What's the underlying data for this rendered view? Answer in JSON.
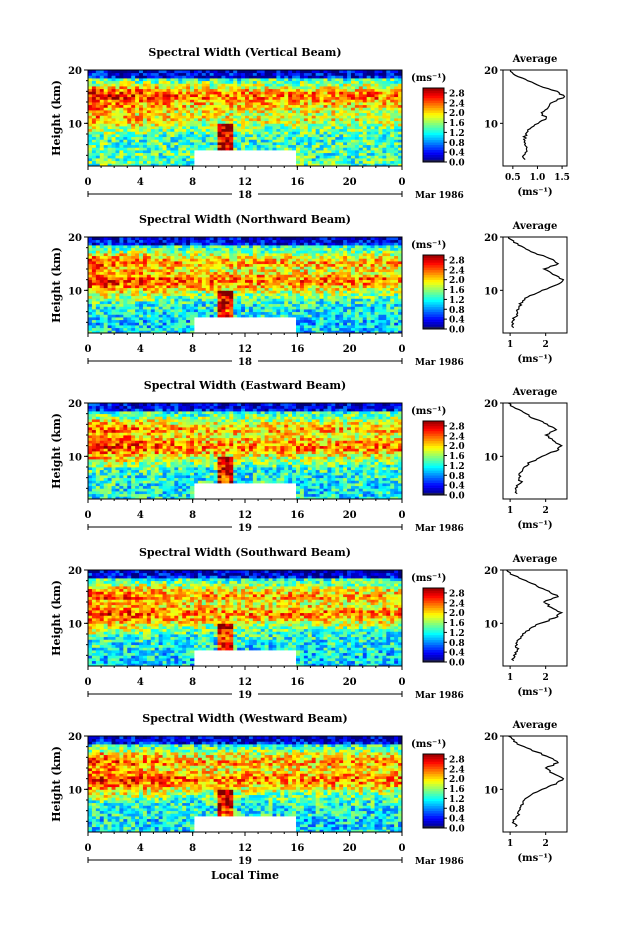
{
  "figure": {
    "x_label": "Local Time",
    "date_label": "Mar 1986"
  },
  "chart_data": [
    {
      "type": "heatmap",
      "title": "Spectral Width (Vertical Beam)",
      "ylabel": "Height (km)",
      "x_ticks": [
        "0",
        "4",
        "8",
        "12",
        "16",
        "20",
        "0"
      ],
      "day_label": "18",
      "xlim": [
        0,
        24
      ],
      "ylim": [
        2,
        20
      ],
      "y_ticks": [
        "20",
        "10"
      ],
      "colorbar": {
        "unit": "(ms⁻¹)",
        "ticks": [
          "2.8",
          "2.4",
          "2.0",
          "1.6",
          "1.2",
          "0.8",
          "0.4",
          "0.0"
        ],
        "range": [
          0,
          3.0
        ]
      },
      "data_gap": {
        "x": [
          8,
          16
        ],
        "y": [
          2,
          5.2
        ]
      },
      "average_profile": {
        "title": "Average",
        "xlabel": "(ms⁻¹)",
        "x_ticks": [
          "0.5",
          "1.0",
          "1.5"
        ],
        "xlim": [
          0.3,
          1.6
        ],
        "height": [
          3.2,
          4,
          5,
          6,
          7,
          8,
          9,
          10,
          11,
          12,
          13,
          14,
          15,
          16,
          17,
          18,
          19,
          20
        ],
        "values": [
          0.75,
          0.72,
          0.78,
          0.74,
          0.72,
          0.76,
          0.85,
          1.02,
          1.18,
          1.08,
          1.22,
          1.32,
          1.55,
          1.4,
          1.05,
          0.8,
          0.55,
          0.45
        ]
      }
    },
    {
      "type": "heatmap",
      "title": "Spectral Width (Northward Beam)",
      "ylabel": "Height (km)",
      "x_ticks": [
        "0",
        "4",
        "8",
        "12",
        "16",
        "20",
        "0"
      ],
      "day_label": "18",
      "xlim": [
        0,
        24
      ],
      "ylim": [
        2,
        20
      ],
      "y_ticks": [
        "20",
        "10"
      ],
      "colorbar": {
        "unit": "(ms⁻¹)",
        "ticks": [
          "2.8",
          "2.4",
          "2.0",
          "1.6",
          "1.2",
          "0.8",
          "0.4",
          "0.0"
        ],
        "range": [
          0,
          3.0
        ]
      },
      "data_gap": {
        "x": [
          8,
          16
        ],
        "y": [
          2,
          5.2
        ]
      },
      "average_profile": {
        "title": "Average",
        "xlabel": "(ms⁻¹)",
        "x_ticks": [
          "1",
          "2"
        ],
        "xlim": [
          0.8,
          2.6
        ],
        "height": [
          3,
          4,
          5,
          6,
          7,
          8,
          9,
          10,
          11,
          12,
          13,
          14,
          15,
          16,
          17,
          18,
          19,
          20
        ],
        "values": [
          1.1,
          1.05,
          1.15,
          1.2,
          1.25,
          1.35,
          1.55,
          1.9,
          2.3,
          2.5,
          2.2,
          1.95,
          2.35,
          2.1,
          1.7,
          1.4,
          1.1,
          0.95
        ]
      }
    },
    {
      "type": "heatmap",
      "title": "Spectral Width (Eastward Beam)",
      "ylabel": "Height (km)",
      "x_ticks": [
        "0",
        "4",
        "8",
        "12",
        "16",
        "20",
        "0"
      ],
      "day_label": "19",
      "xlim": [
        0,
        24
      ],
      "ylim": [
        2,
        20
      ],
      "y_ticks": [
        "20",
        "10"
      ],
      "colorbar": {
        "unit": "(ms⁻¹)",
        "ticks": [
          "2.8",
          "2.4",
          "2.0",
          "1.6",
          "1.2",
          "0.8",
          "0.4",
          "0.0"
        ],
        "range": [
          0,
          3.0
        ]
      },
      "data_gap": {
        "x": [
          8,
          16
        ],
        "y": [
          2,
          5.2
        ]
      },
      "average_profile": {
        "title": "Average",
        "xlabel": "(ms⁻¹)",
        "x_ticks": [
          "1",
          "2"
        ],
        "xlim": [
          0.8,
          2.6
        ],
        "height": [
          3,
          4,
          5,
          6,
          7,
          8,
          9,
          10,
          11,
          12,
          13,
          14,
          15,
          16,
          17,
          18,
          19,
          20
        ],
        "values": [
          1.2,
          1.15,
          1.3,
          1.25,
          1.3,
          1.4,
          1.6,
          1.9,
          2.3,
          2.45,
          2.2,
          2.0,
          2.3,
          2.05,
          1.7,
          1.45,
          1.15,
          0.95
        ]
      }
    },
    {
      "type": "heatmap",
      "title": "Spectral Width (Southward Beam)",
      "ylabel": "Height (km)",
      "x_ticks": [
        "0",
        "4",
        "8",
        "12",
        "16",
        "20",
        "0"
      ],
      "day_label": "19",
      "xlim": [
        0,
        24
      ],
      "ylim": [
        2,
        20
      ],
      "y_ticks": [
        "20",
        "10"
      ],
      "colorbar": {
        "unit": "(ms⁻¹)",
        "ticks": [
          "2.8",
          "2.4",
          "2.0",
          "1.6",
          "1.2",
          "0.8",
          "0.4",
          "0.0"
        ],
        "range": [
          0,
          3.0
        ]
      },
      "data_gap": {
        "x": [
          8,
          16
        ],
        "y": [
          2,
          5.2
        ]
      },
      "average_profile": {
        "title": "Average",
        "xlabel": "(ms⁻¹)",
        "x_ticks": [
          "1",
          "2"
        ],
        "xlim": [
          0.8,
          2.6
        ],
        "height": [
          3,
          4,
          5,
          6,
          7,
          8,
          9,
          10,
          11,
          12,
          13,
          14,
          15,
          16,
          17,
          18,
          19,
          20
        ],
        "values": [
          1.1,
          1.1,
          1.2,
          1.2,
          1.25,
          1.35,
          1.55,
          1.85,
          2.25,
          2.45,
          2.15,
          1.95,
          2.35,
          2.1,
          1.75,
          1.45,
          1.1,
          0.9
        ]
      }
    },
    {
      "type": "heatmap",
      "title": "Spectral Width (Westward Beam)",
      "ylabel": "Height (km)",
      "x_ticks": [
        "0",
        "4",
        "8",
        "12",
        "16",
        "20",
        "0"
      ],
      "day_label": "19",
      "xlim": [
        0,
        24
      ],
      "ylim": [
        2,
        20
      ],
      "y_ticks": [
        "20",
        "10"
      ],
      "colorbar": {
        "unit": "(ms⁻¹)",
        "ticks": [
          "2.8",
          "2.4",
          "2.0",
          "1.6",
          "1.2",
          "0.8",
          "0.4",
          "0.0"
        ],
        "range": [
          0,
          3.0
        ]
      },
      "data_gap": {
        "x": [
          8,
          16
        ],
        "y": [
          2,
          5.2
        ]
      },
      "average_profile": {
        "title": "Average",
        "xlabel": "(ms⁻¹)",
        "x_ticks": [
          "1",
          "2"
        ],
        "xlim": [
          0.8,
          2.6
        ],
        "height": [
          3,
          4,
          5,
          6,
          7,
          8,
          9,
          10,
          11,
          12,
          13,
          14,
          15,
          16,
          17,
          18,
          19,
          20
        ],
        "values": [
          1.15,
          1.1,
          1.2,
          1.25,
          1.3,
          1.4,
          1.6,
          1.9,
          2.3,
          2.5,
          2.2,
          2.0,
          2.35,
          2.1,
          1.75,
          1.4,
          1.1,
          0.95
        ]
      }
    }
  ]
}
